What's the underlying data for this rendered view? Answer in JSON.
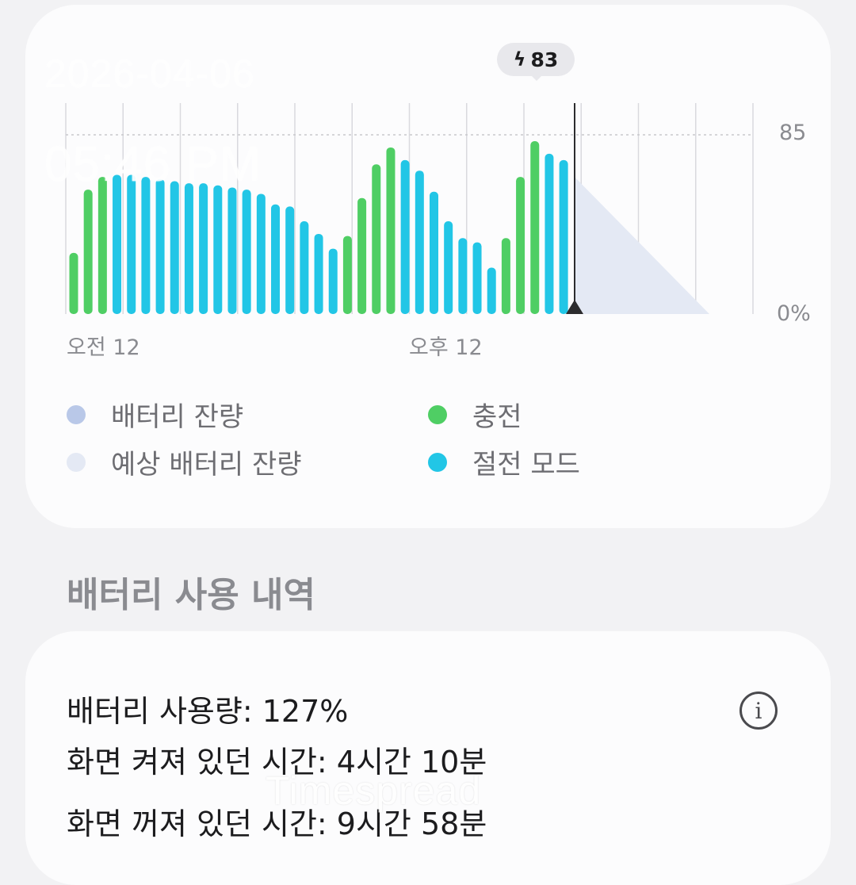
{
  "overlay": {
    "date": "2026-04-06",
    "time": "05:46 PM"
  },
  "chart": {
    "x_ticks": {
      "am": "오전 12",
      "pm": "오후 12"
    },
    "y_ticks": {
      "top": "85",
      "bottom": "0%"
    },
    "charge_badge": {
      "icon": "bolt-icon",
      "value": "83"
    },
    "colors": {
      "charging": "#4fce64",
      "power_saving": "#22c6e6",
      "battery_level": "#b9c8e8",
      "predicted": "#e4e9f4"
    }
  },
  "chart_data": {
    "type": "bar",
    "x_ticks": [
      "오전 12",
      "오후 12"
    ],
    "y_ticks": [
      "85",
      "0%"
    ],
    "ylim": [
      0,
      100
    ],
    "series": [
      {
        "name": "충전",
        "color": "#4fce64"
      },
      {
        "name": "절전 모드",
        "color": "#22c6e6"
      }
    ],
    "bars": [
      {
        "v": 29,
        "s": 0
      },
      {
        "v": 59,
        "s": 0
      },
      {
        "v": 65,
        "s": 0
      },
      {
        "v": 66,
        "s": 1
      },
      {
        "v": 66,
        "s": 1
      },
      {
        "v": 65,
        "s": 1
      },
      {
        "v": 64,
        "s": 1
      },
      {
        "v": 63,
        "s": 1
      },
      {
        "v": 62,
        "s": 1
      },
      {
        "v": 62,
        "s": 1
      },
      {
        "v": 61,
        "s": 1
      },
      {
        "v": 60,
        "s": 1
      },
      {
        "v": 59,
        "s": 1
      },
      {
        "v": 57,
        "s": 1
      },
      {
        "v": 52,
        "s": 1
      },
      {
        "v": 51,
        "s": 1
      },
      {
        "v": 44,
        "s": 1
      },
      {
        "v": 38,
        "s": 1
      },
      {
        "v": 31,
        "s": 1
      },
      {
        "v": 37,
        "s": 0
      },
      {
        "v": 55,
        "s": 0
      },
      {
        "v": 71,
        "s": 0
      },
      {
        "v": 79,
        "s": 0
      },
      {
        "v": 73,
        "s": 1
      },
      {
        "v": 68,
        "s": 1
      },
      {
        "v": 58,
        "s": 1
      },
      {
        "v": 44,
        "s": 1
      },
      {
        "v": 36,
        "s": 1
      },
      {
        "v": 34,
        "s": 1
      },
      {
        "v": 22,
        "s": 1
      },
      {
        "v": 36,
        "s": 0
      },
      {
        "v": 65,
        "s": 0
      },
      {
        "v": 82,
        "s": 0
      },
      {
        "v": 76,
        "s": 1
      },
      {
        "v": 73,
        "s": 1
      }
    ],
    "predicted": {
      "from": 65,
      "to": 0
    }
  },
  "legend": [
    {
      "label": "배터리 잔량",
      "color": "#b9c8e8"
    },
    {
      "label": "예상 배터리 잔량",
      "color": "#e4e9f4"
    },
    {
      "label": "충전",
      "color": "#4fce64"
    },
    {
      "label": "절전 모드",
      "color": "#22c6e6"
    }
  ],
  "section_title": "배터리 사용 내역",
  "usage": {
    "battery_usage": "배터리 사용량: 127%",
    "screen_on": "화면 켜져 있던 시간: 4시간 10분",
    "screen_off": "화면 꺼져 있던 시간: 9시간 58분"
  },
  "info_icon": "info-icon",
  "watermark": "Timespread"
}
